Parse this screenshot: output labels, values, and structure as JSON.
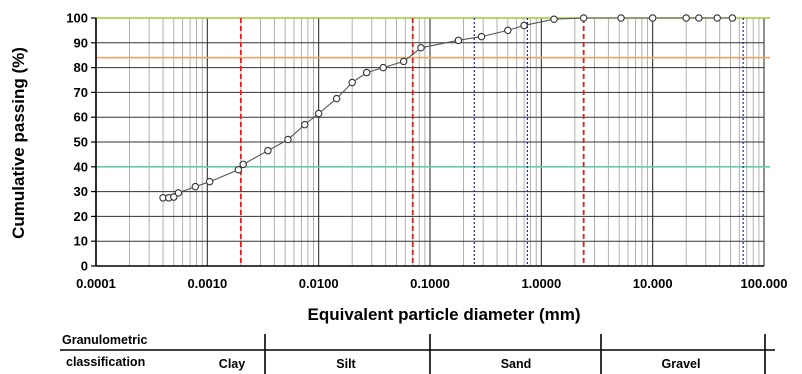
{
  "chart_data": {
    "type": "scatter",
    "title": "",
    "xlabel": "Equivalent particle diameter (mm)",
    "ylabel": "Cumulative passing (%)",
    "x_scale": "log",
    "xlim": [
      0.0001,
      100
    ],
    "ylim": [
      0,
      100
    ],
    "grid": true,
    "x_ticks": [
      {
        "value": 0.0001,
        "label": "0.0001"
      },
      {
        "value": 0.001,
        "label": "0.0010"
      },
      {
        "value": 0.01,
        "label": "0.0100"
      },
      {
        "value": 0.1,
        "label": "0.1000"
      },
      {
        "value": 1,
        "label": "1.0000"
      },
      {
        "value": 10,
        "label": "10.000"
      },
      {
        "value": 100,
        "label": "100.000"
      }
    ],
    "y_ticks": [
      0,
      10,
      20,
      30,
      40,
      50,
      60,
      70,
      80,
      90,
      100
    ],
    "series": [
      {
        "name": "",
        "color": "#555555",
        "points": [
          {
            "x": 0.0004,
            "y": 27.5
          },
          {
            "x": 0.00045,
            "y": 27.5
          },
          {
            "x": 0.0005,
            "y": 27.8
          },
          {
            "x": 0.00055,
            "y": 29.5
          },
          {
            "x": 0.00078,
            "y": 32
          },
          {
            "x": 0.00105,
            "y": 34
          },
          {
            "x": 0.0019,
            "y": 38.8
          },
          {
            "x": 0.0021,
            "y": 41
          },
          {
            "x": 0.0035,
            "y": 46.5
          },
          {
            "x": 0.0053,
            "y": 51
          },
          {
            "x": 0.0075,
            "y": 57
          },
          {
            "x": 0.01,
            "y": 61.5
          },
          {
            "x": 0.0145,
            "y": 67.5
          },
          {
            "x": 0.02,
            "y": 74
          },
          {
            "x": 0.027,
            "y": 78
          },
          {
            "x": 0.038,
            "y": 80
          },
          {
            "x": 0.058,
            "y": 82.5
          },
          {
            "x": 0.083,
            "y": 88
          },
          {
            "x": 0.18,
            "y": 91
          },
          {
            "x": 0.29,
            "y": 92.5
          },
          {
            "x": 0.5,
            "y": 95
          },
          {
            "x": 0.7,
            "y": 97
          },
          {
            "x": 1.3,
            "y": 99.5
          },
          {
            "x": 2.4,
            "y": 100
          },
          {
            "x": 5.2,
            "y": 100
          },
          {
            "x": 10,
            "y": 100
          },
          {
            "x": 20,
            "y": 100
          },
          {
            "x": 26,
            "y": 100
          },
          {
            "x": 38,
            "y": 100
          },
          {
            "x": 52,
            "y": 100
          }
        ]
      }
    ],
    "reference_lines": {
      "horizontal": [
        {
          "y": 100,
          "color": "#9acd32"
        },
        {
          "y": 84,
          "color": "#f4a460"
        },
        {
          "y": 40,
          "color": "#66cdaa"
        }
      ],
      "vertical": [
        {
          "x": 0.002,
          "color": "#e02020",
          "style": "dashed"
        },
        {
          "x": 0.07,
          "color": "#e02020",
          "style": "dashed"
        },
        {
          "x": 2.4,
          "color": "#e02020",
          "style": "dashed"
        },
        {
          "x": 0.25,
          "color": "#2020c0",
          "style": "dotted"
        },
        {
          "x": 0.75,
          "color": "#2020c0",
          "style": "dotted"
        },
        {
          "x": 65,
          "color": "#2020c0",
          "style": "dotted"
        }
      ]
    }
  },
  "classification": {
    "header_line1": "Granulometric",
    "header_line2": "classification",
    "classes": [
      "Clay",
      "Silt",
      "Sand",
      "Gravel"
    ]
  }
}
